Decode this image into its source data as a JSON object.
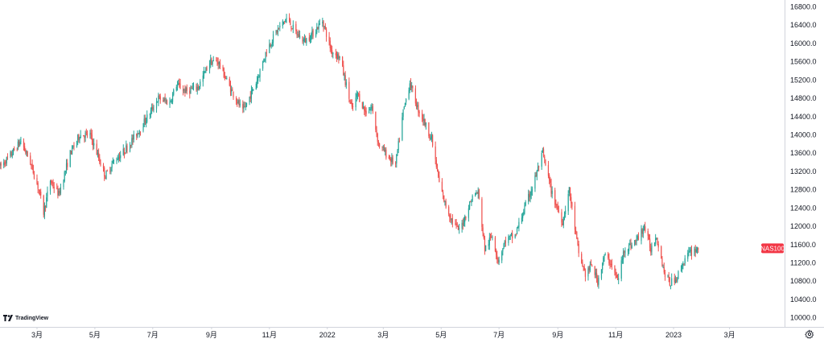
{
  "chart_data": {
    "type": "candlestick",
    "symbol": "NAS100",
    "last_value": 11520,
    "x_range": [
      "2021-01-21",
      "2023-04-28"
    ],
    "ylim": [
      9800,
      16950
    ],
    "y_ticks": [
      10000,
      10400,
      10800,
      11200,
      11600,
      12000,
      12400,
      12800,
      13200,
      13600,
      14000,
      14400,
      14800,
      15200,
      15600,
      16000,
      16400,
      16800
    ],
    "y_tick_labels": [
      "10000.0",
      "10400.0",
      "10800.0",
      "11200.0",
      "11600.0",
      "12000.0",
      "12400.0",
      "12800.0",
      "13200.0",
      "13600.0",
      "14000.0",
      "14400.0",
      "14800.0",
      "15200.0",
      "15600.0",
      "16000.0",
      "16400.0",
      "16800.0"
    ],
    "x_ticks": [
      {
        "date": "2021-03-01",
        "label": "3月"
      },
      {
        "date": "2021-05-01",
        "label": "5月"
      },
      {
        "date": "2021-07-01",
        "label": "7月"
      },
      {
        "date": "2021-09-01",
        "label": "9月"
      },
      {
        "date": "2021-11-01",
        "label": "11月"
      },
      {
        "date": "2022-01-01",
        "label": "2022"
      },
      {
        "date": "2022-03-01",
        "label": "3月"
      },
      {
        "date": "2022-05-01",
        "label": "5月"
      },
      {
        "date": "2022-07-01",
        "label": "7月"
      },
      {
        "date": "2022-09-01",
        "label": "9月"
      },
      {
        "date": "2022-11-01",
        "label": "11月"
      },
      {
        "date": "2023-01-01",
        "label": "2023"
      },
      {
        "date": "2023-03-01",
        "label": "3月"
      }
    ],
    "trend": [
      [
        "2021-01-21",
        13300
      ],
      [
        "2021-02-01",
        13550
      ],
      [
        "2021-02-12",
        13870
      ],
      [
        "2021-02-22",
        13400
      ],
      [
        "2021-03-03",
        12800
      ],
      [
        "2021-03-08",
        12300
      ],
      [
        "2021-03-15",
        13000
      ],
      [
        "2021-03-24",
        12700
      ],
      [
        "2021-04-05",
        13600
      ],
      [
        "2021-04-15",
        14000
      ],
      [
        "2021-04-26",
        14000
      ],
      [
        "2021-05-05",
        13500
      ],
      [
        "2021-05-12",
        13100
      ],
      [
        "2021-05-20",
        13400
      ],
      [
        "2021-06-01",
        13650
      ],
      [
        "2021-06-15",
        14050
      ],
      [
        "2021-06-30",
        14550
      ],
      [
        "2021-07-07",
        14800
      ],
      [
        "2021-07-19",
        14700
      ],
      [
        "2021-07-26",
        15100
      ],
      [
        "2021-08-05",
        14950
      ],
      [
        "2021-08-18",
        15050
      ],
      [
        "2021-08-30",
        15600
      ],
      [
        "2021-09-08",
        15600
      ],
      [
        "2021-09-20",
        15050
      ],
      [
        "2021-10-04",
        14500
      ],
      [
        "2021-10-18",
        15150
      ],
      [
        "2021-10-29",
        15850
      ],
      [
        "2021-11-08",
        16250
      ],
      [
        "2021-11-19",
        16550
      ],
      [
        "2021-11-30",
        16200
      ],
      [
        "2021-12-08",
        16050
      ],
      [
        "2021-12-16",
        16200
      ],
      [
        "2021-12-27",
        16500
      ],
      [
        "2022-01-05",
        15850
      ],
      [
        "2022-01-14",
        15700
      ],
      [
        "2022-01-27",
        14550
      ],
      [
        "2022-02-02",
        14900
      ],
      [
        "2022-02-10",
        14500
      ],
      [
        "2022-02-17",
        14600
      ],
      [
        "2022-02-24",
        13800
      ],
      [
        "2022-03-07",
        13500
      ],
      [
        "2022-03-14",
        13350
      ],
      [
        "2022-03-22",
        14500
      ],
      [
        "2022-03-29",
        15150
      ],
      [
        "2022-04-06",
        14600
      ],
      [
        "2022-04-13",
        14300
      ],
      [
        "2022-04-21",
        13900
      ],
      [
        "2022-04-29",
        12950
      ],
      [
        "2022-05-05",
        12500
      ],
      [
        "2022-05-12",
        12150
      ],
      [
        "2022-05-20",
        11900
      ],
      [
        "2022-05-26",
        12200
      ],
      [
        "2022-06-03",
        12650
      ],
      [
        "2022-06-09",
        12750
      ],
      [
        "2022-06-16",
        11500
      ],
      [
        "2022-06-24",
        11800
      ],
      [
        "2022-06-30",
        11250
      ],
      [
        "2022-07-08",
        11700
      ],
      [
        "2022-07-18",
        11800
      ],
      [
        "2022-07-28",
        12400
      ],
      [
        "2022-08-05",
        12850
      ],
      [
        "2022-08-16",
        13600
      ],
      [
        "2022-08-26",
        12700
      ],
      [
        "2022-09-06",
        12100
      ],
      [
        "2022-09-13",
        12800
      ],
      [
        "2022-09-23",
        11400
      ],
      [
        "2022-09-30",
        10950
      ],
      [
        "2022-10-07",
        11150
      ],
      [
        "2022-10-13",
        10800
      ],
      [
        "2022-10-20",
        11350
      ],
      [
        "2022-10-27",
        11200
      ],
      [
        "2022-11-03",
        10800
      ],
      [
        "2022-11-10",
        11500
      ],
      [
        "2022-11-18",
        11600
      ],
      [
        "2022-11-25",
        11750
      ],
      [
        "2022-12-01",
        12000
      ],
      [
        "2022-12-08",
        11500
      ],
      [
        "2022-12-14",
        11800
      ],
      [
        "2022-12-22",
        11000
      ],
      [
        "2022-12-28",
        10750
      ],
      [
        "2023-01-05",
        10900
      ],
      [
        "2023-01-13",
        11300
      ],
      [
        "2023-01-20",
        11450
      ],
      [
        "2023-01-27",
        11520
      ]
    ],
    "colors": {
      "up": "#26a69a",
      "down": "#ef5350",
      "price_label": "#f23645",
      "axis_text": "#131722",
      "axis_line": "#d1d4dc"
    }
  },
  "branding": {
    "logo_text": "TradingView"
  },
  "icons": {
    "settings": "gear-icon",
    "logo": "tradingview-logo-icon"
  }
}
